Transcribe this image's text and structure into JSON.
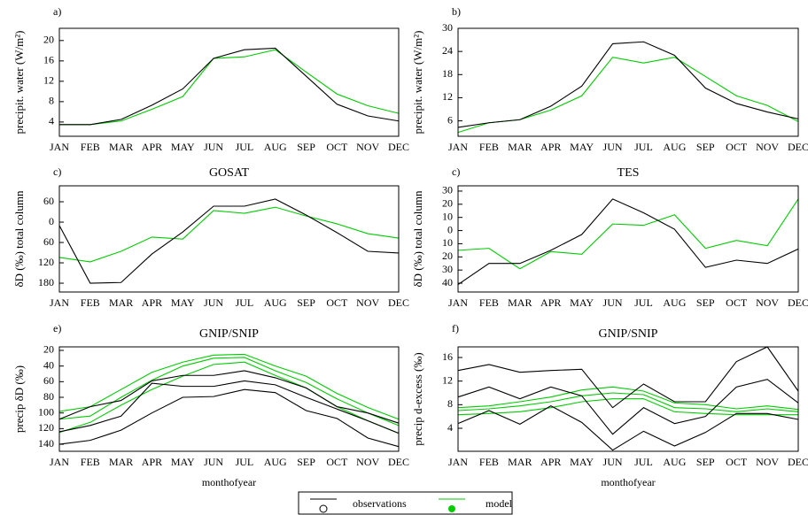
{
  "chart_data": [
    {
      "type": "line",
      "panel_label": "a)",
      "ylabel": "precipit. water (W/m²)",
      "categories": [
        "JAN",
        "FEB",
        "MAR",
        "APR",
        "MAY",
        "JUN",
        "JUL",
        "AUG",
        "SEP",
        "OCT",
        "NOV",
        "DEC"
      ],
      "ylim": [
        1.2,
        22.4
      ],
      "yticks": [
        4,
        8,
        12,
        16,
        20
      ],
      "series": [
        {
          "name": "observations",
          "color": "#000000",
          "values": [
            3.5,
            3.5,
            4.5,
            7.3,
            10.5,
            16.5,
            18.2,
            18.5,
            13,
            7.5,
            5.2,
            4.2
          ]
        },
        {
          "name": "model",
          "color": "#00cc00",
          "values": [
            3.5,
            3.5,
            4.2,
            6.5,
            9,
            16.5,
            16.8,
            18.2,
            13.8,
            9.5,
            7.2,
            5.7
          ]
        }
      ]
    },
    {
      "type": "line",
      "panel_label": "b)",
      "ylabel": "precipit. water (W/m²)",
      "categories": [
        "JAN",
        "FEB",
        "MAR",
        "APR",
        "MAY",
        "JUN",
        "JUL",
        "AUG",
        "SEP",
        "OCT",
        "NOV",
        "DEC"
      ],
      "ylim": [
        2,
        30
      ],
      "yticks": [
        6,
        12,
        18,
        24,
        30
      ],
      "series": [
        {
          "name": "observations",
          "color": "#000000",
          "values": [
            4.3,
            5.5,
            6.3,
            9.8,
            15,
            26,
            26.5,
            23,
            14.5,
            10.5,
            8.3,
            6.5
          ]
        },
        {
          "name": "model",
          "color": "#00cc00",
          "values": [
            3,
            5.5,
            6.3,
            8.8,
            12.5,
            22.5,
            21,
            22.5,
            17.5,
            12.5,
            10,
            5.8
          ]
        }
      ]
    },
    {
      "type": "line",
      "panel_label": "c)",
      "title": "GOSAT",
      "ylabel": "δD (‰) total column",
      "categories": [
        "JAN",
        "FEB",
        "MAR",
        "APR",
        "MAY",
        "JUN",
        "JUL",
        "AUG",
        "SEP",
        "OCT",
        "NOV",
        "DEC"
      ],
      "ylim": [
        -206,
        107
      ],
      "yticks": [
        60,
        0,
        {
          "value": -60,
          "label": "60"
        },
        {
          "value": -120,
          "label": "120"
        },
        {
          "value": -180,
          "label": "180"
        }
      ],
      "series": [
        {
          "name": "observations",
          "color": "#000000",
          "values": [
            -10,
            -180,
            -178,
            -94,
            -29,
            47,
            47,
            68,
            21,
            -31,
            -86,
            -91
          ]
        },
        {
          "name": "model",
          "color": "#00cc00",
          "values": [
            -104,
            -117,
            -86,
            -44,
            -50,
            34,
            26,
            44,
            18,
            -5,
            -34,
            -47
          ]
        }
      ]
    },
    {
      "type": "line",
      "panel_label": "c)",
      "title": "TES",
      "ylabel": "δD (‰) total column",
      "categories": [
        "JAN",
        "FEB",
        "MAR",
        "APR",
        "MAY",
        "JUN",
        "JUL",
        "AUG",
        "SEP",
        "OCT",
        "NOV",
        "DEC"
      ],
      "ylim": [
        -46.7,
        34
      ],
      "yticks": [
        30,
        20,
        10,
        0,
        {
          "value": -10,
          "label": "10"
        },
        {
          "value": -20,
          "label": "20"
        },
        {
          "value": -30,
          "label": "30"
        },
        {
          "value": -40,
          "label": "40"
        }
      ],
      "series": [
        {
          "name": "observations",
          "color": "#000000",
          "values": [
            -41,
            -25,
            -25,
            -15,
            -3,
            24,
            13.5,
            1,
            -28,
            -22.5,
            -25,
            -14
          ]
        },
        {
          "name": "model",
          "color": "#00cc00",
          "values": [
            -15,
            -13.5,
            -29,
            -16,
            -18,
            5,
            4,
            12,
            -13.5,
            -7.5,
            -11.5,
            24
          ]
        }
      ]
    },
    {
      "type": "line",
      "panel_label": "e)",
      "title": "GNIP/SNIP",
      "ylabel": "precip δD (‰)",
      "xlabel": "monthofyear",
      "categories": [
        "JAN",
        "FEB",
        "MAR",
        "APR",
        "MAY",
        "JUN",
        "JUL",
        "AUG",
        "SEP",
        "OCT",
        "NOV",
        "DEC"
      ],
      "ylim": [
        -149,
        -15.5
      ],
      "yticks": [
        {
          "value": -20,
          "label": "20"
        },
        {
          "value": -40,
          "label": "40"
        },
        {
          "value": -60,
          "label": "60"
        },
        {
          "value": -80,
          "label": "80"
        },
        {
          "value": -100,
          "label": "100"
        },
        {
          "value": -120,
          "label": "120"
        },
        {
          "value": -140,
          "label": "140"
        }
      ],
      "series": [
        {
          "name": "observations",
          "color": "#000000",
          "values": [
            -108,
            -92,
            -84,
            -59,
            -52,
            -52,
            -46,
            -55,
            -68,
            -92,
            -100,
            -113
          ]
        },
        {
          "name": "observations",
          "color": "#000000",
          "values": [
            -124,
            -116,
            -104,
            -62,
            -66,
            -66,
            -59,
            -64,
            -80,
            -95,
            -110,
            -126
          ]
        },
        {
          "name": "observations",
          "color": "#000000",
          "values": [
            -140,
            -135,
            -122,
            -100,
            -80,
            -79,
            -70,
            -74,
            -97,
            -107,
            -132,
            -143
          ]
        },
        {
          "name": "model",
          "color": "#00cc00",
          "values": [
            -98,
            -92,
            -70,
            -48,
            -35,
            -26,
            -25,
            -40,
            -53,
            -75,
            -93,
            -108
          ]
        },
        {
          "name": "model",
          "color": "#00cc00",
          "values": [
            -108,
            -104,
            -80,
            -58,
            -40,
            -30,
            -29,
            -46,
            -61,
            -82,
            -100,
            -116
          ]
        },
        {
          "name": "model",
          "color": "#00cc00",
          "values": [
            -125,
            -112,
            -90,
            -70,
            -53,
            -38,
            -35,
            -52,
            -68,
            -92,
            -110,
            -126
          ]
        }
      ]
    },
    {
      "type": "line",
      "panel_label": "f)",
      "title": "GNIP/SNIP",
      "ylabel": "precip d-excess (‰)",
      "xlabel": "monthofyear",
      "categories": [
        "JAN",
        "FEB",
        "MAR",
        "APR",
        "MAY",
        "JUN",
        "JUL",
        "AUG",
        "SEP",
        "OCT",
        "NOV",
        "DEC"
      ],
      "ylim": [
        0.1,
        17.8
      ],
      "yticks": [
        4,
        8,
        12,
        16
      ],
      "series": [
        {
          "name": "observations",
          "color": "#000000",
          "values": [
            13.8,
            14.8,
            13.5,
            13.8,
            14,
            7.5,
            11.5,
            8.5,
            8.5,
            15.3,
            17.8,
            10.3
          ]
        },
        {
          "name": "observations",
          "color": "#000000",
          "values": [
            9.3,
            11,
            9,
            11,
            9.5,
            3,
            7.5,
            4.8,
            6,
            11,
            12.3,
            8.3
          ]
        },
        {
          "name": "observations",
          "color": "#000000",
          "values": [
            4.8,
            7,
            4.7,
            7.8,
            5,
            0.3,
            3.5,
            1,
            3.3,
            6.5,
            6.5,
            5.5
          ]
        },
        {
          "name": "model",
          "color": "#00cc00",
          "values": [
            7.5,
            7.8,
            8.5,
            9.3,
            10.5,
            11,
            10.3,
            8.3,
            8,
            7.3,
            7.8,
            7.2
          ]
        },
        {
          "name": "model",
          "color": "#00cc00",
          "values": [
            7,
            7.3,
            7.8,
            8.5,
            9.5,
            10,
            9.7,
            7.5,
            7.3,
            6.8,
            7.3,
            6.8
          ]
        },
        {
          "name": "model",
          "color": "#00cc00",
          "values": [
            6.3,
            6.5,
            6.8,
            7.5,
            8.5,
            9,
            9,
            6.8,
            6.5,
            6.3,
            6.3,
            6.3
          ]
        }
      ]
    }
  ]
}
